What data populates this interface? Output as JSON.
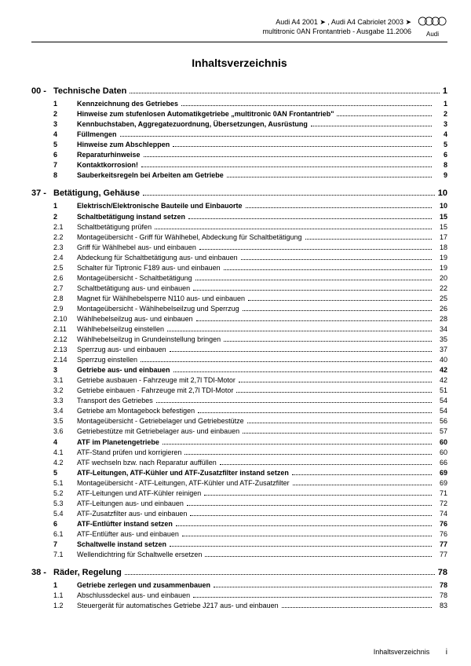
{
  "header": {
    "line1": "Audi A4 2001 ➤ , Audi A4 Cabriolet 2003 ➤",
    "line2": "multitronic 0AN Frontantrieb - Ausgabe 11.2006",
    "brand": "Audi"
  },
  "title": "Inhaltsverzeichnis",
  "footer": {
    "label": "Inhaltsverzeichnis",
    "page": "i"
  },
  "sections": [
    {
      "num": "00 -",
      "title": "Technische Daten",
      "page": "1",
      "entries": [
        {
          "num": "1",
          "label": "Kennzeichnung des Getriebes",
          "page": "1",
          "bold": true
        },
        {
          "num": "2",
          "label": "Hinweise zum stufenlosen Automatikgetriebe „multitronic 0AN Frontantrieb\"",
          "page": "2",
          "bold": true
        },
        {
          "num": "3",
          "label": "Kennbuchstaben, Aggregatezuordnung, Übersetzungen, Ausrüstung",
          "page": "3",
          "bold": true
        },
        {
          "num": "4",
          "label": "Füllmengen",
          "page": "4",
          "bold": true
        },
        {
          "num": "5",
          "label": "Hinweise zum Abschleppen",
          "page": "5",
          "bold": true
        },
        {
          "num": "6",
          "label": "Reparaturhinweise",
          "page": "6",
          "bold": true
        },
        {
          "num": "7",
          "label": "Kontaktkorrosion!",
          "page": "8",
          "bold": true
        },
        {
          "num": "8",
          "label": "Sauberkeitsregeln bei Arbeiten am Getriebe",
          "page": "9",
          "bold": true
        }
      ]
    },
    {
      "num": "37 -",
      "title": "Betätigung, Gehäuse",
      "page": "10",
      "entries": [
        {
          "num": "1",
          "label": "Elektrisch/Elektronische Bauteile und Einbauorte",
          "page": "10",
          "bold": true
        },
        {
          "num": "2",
          "label": "Schaltbetätigung instand setzen",
          "page": "15",
          "bold": true
        },
        {
          "num": "2.1",
          "label": "Schaltbetätigung prüfen",
          "page": "15"
        },
        {
          "num": "2.2",
          "label": "Montageübersicht - Griff für Wählhebel, Abdeckung für Schaltbetätigung",
          "page": "17"
        },
        {
          "num": "2.3",
          "label": "Griff für Wählhebel aus- und einbauen",
          "page": "18"
        },
        {
          "num": "2.4",
          "label": "Abdeckung für Schaltbetätigung aus- und einbauen",
          "page": "19"
        },
        {
          "num": "2.5",
          "label": "Schalter für Tiptronic F189 aus- und einbauen",
          "page": "19"
        },
        {
          "num": "2.6",
          "label": "Montageübersicht - Schaltbetätigung",
          "page": "20"
        },
        {
          "num": "2.7",
          "label": "Schaltbetätigung aus- und einbauen",
          "page": "22"
        },
        {
          "num": "2.8",
          "label": "Magnet für Wählhebelsperre N110 aus- und einbauen",
          "page": "25"
        },
        {
          "num": "2.9",
          "label": "Montageübersicht - Wählhebelseilzug und Sperrzug",
          "page": "26"
        },
        {
          "num": "2.10",
          "label": "Wählhebelseilzug aus- und einbauen",
          "page": "28"
        },
        {
          "num": "2.11",
          "label": "Wählhebelseilzug einstellen",
          "page": "34"
        },
        {
          "num": "2.12",
          "label": "Wählhebelseilzug in Grundeinstellung bringen",
          "page": "35"
        },
        {
          "num": "2.13",
          "label": "Sperrzug aus- und einbauen",
          "page": "37"
        },
        {
          "num": "2.14",
          "label": "Sperrzug einstellen",
          "page": "40"
        },
        {
          "num": "3",
          "label": "Getriebe aus- und einbauen",
          "page": "42",
          "bold": true
        },
        {
          "num": "3.1",
          "label": "Getriebe ausbauen - Fahrzeuge mit 2,7l TDI-Motor",
          "page": "42"
        },
        {
          "num": "3.2",
          "label": "Getriebe einbauen - Fahrzeuge mit 2,7l TDI-Motor",
          "page": "51"
        },
        {
          "num": "3.3",
          "label": "Transport des Getriebes",
          "page": "54"
        },
        {
          "num": "3.4",
          "label": "Getriebe am Montagebock befestigen",
          "page": "54"
        },
        {
          "num": "3.5",
          "label": "Montageübersicht - Getriebelager und Getriebestütze",
          "page": "56"
        },
        {
          "num": "3.6",
          "label": "Getriebestütze mit Getriebelager aus- und einbauen",
          "page": "57"
        },
        {
          "num": "4",
          "label": "ATF im Planetengetriebe",
          "page": "60",
          "bold": true
        },
        {
          "num": "4.1",
          "label": "ATF-Stand prüfen und korrigieren",
          "page": "60"
        },
        {
          "num": "4.2",
          "label": "ATF wechseln bzw. nach Reparatur auffüllen",
          "page": "66"
        },
        {
          "num": "5",
          "label": "ATF-Leitungen, ATF-Kühler und ATF-Zusatzfilter instand setzen",
          "page": "69",
          "bold": true
        },
        {
          "num": "5.1",
          "label": "Montageübersicht - ATF-Leitungen, ATF-Kühler und ATF-Zusatzfilter",
          "page": "69"
        },
        {
          "num": "5.2",
          "label": "ATF-Leitungen und ATF-Kühler reinigen",
          "page": "71"
        },
        {
          "num": "5.3",
          "label": "ATF-Leitungen aus- und einbauen",
          "page": "72"
        },
        {
          "num": "5.4",
          "label": "ATF-Zusatzfilter aus- und einbauen",
          "page": "74"
        },
        {
          "num": "6",
          "label": "ATF-Entlüfter instand setzen",
          "page": "76",
          "bold": true
        },
        {
          "num": "6.1",
          "label": "ATF-Entlüfter aus- und einbauen",
          "page": "76"
        },
        {
          "num": "7",
          "label": "Schaltwelle instand setzen",
          "page": "77",
          "bold": true
        },
        {
          "num": "7.1",
          "label": "Wellendichtring für Schaltwelle ersetzen",
          "page": "77"
        }
      ]
    },
    {
      "num": "38 -",
      "title": "Räder, Regelung",
      "page": "78",
      "entries": [
        {
          "num": "1",
          "label": "Getriebe zerlegen und zusammenbauen",
          "page": "78",
          "bold": true
        },
        {
          "num": "1.1",
          "label": "Abschlussdeckel aus- und einbauen",
          "page": "78"
        },
        {
          "num": "1.2",
          "label": "Steuergerät für automatisches Getriebe J217 aus- und einbauen",
          "page": "83"
        }
      ]
    }
  ]
}
